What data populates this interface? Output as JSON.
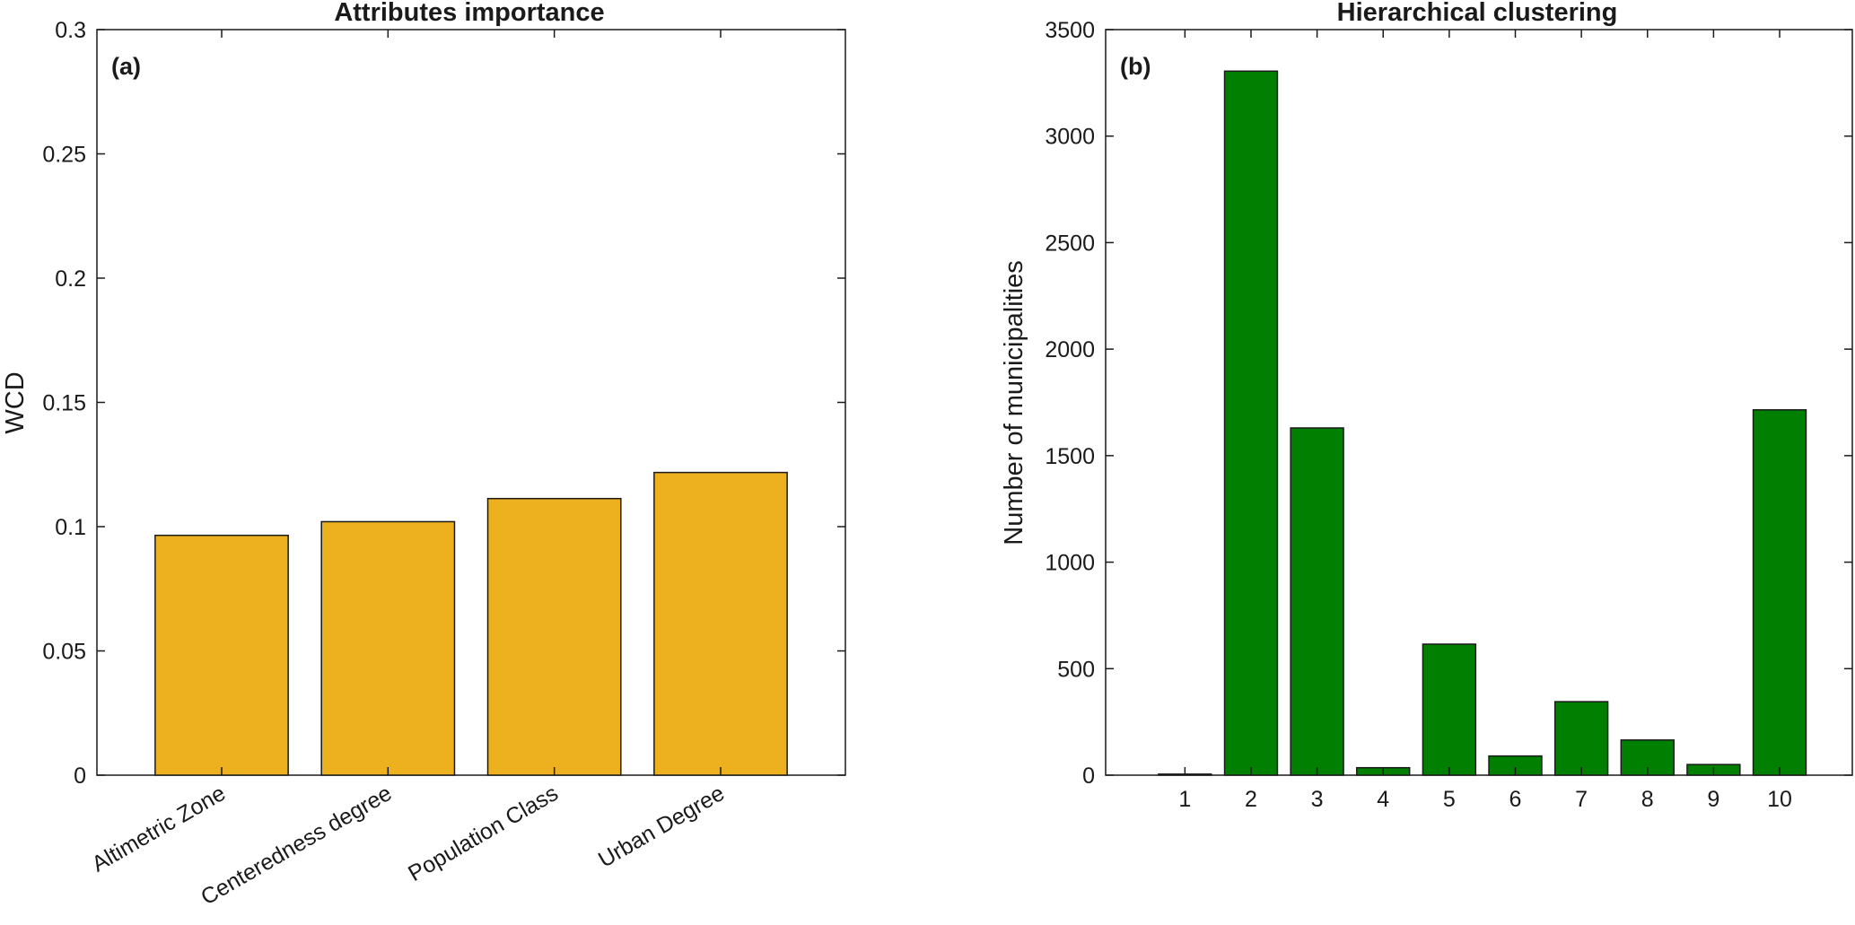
{
  "chart_data": [
    {
      "type": "bar",
      "title": "Attributes importance",
      "panel_label": "(a)",
      "xlabel": "",
      "ylabel": "WCD",
      "categories": [
        "Altimetric Zone",
        "Centeredness degree",
        "Population Class",
        "Urban Degree"
      ],
      "values": [
        0.0965,
        0.102,
        0.1113,
        0.1218
      ],
      "ylim": [
        0,
        0.3
      ],
      "yticks": [
        0,
        0.05,
        0.1,
        0.15,
        0.2,
        0.25,
        0.3
      ],
      "ytick_labels": [
        "0",
        "0.05",
        "0.1",
        "0.15",
        "0.2",
        "0.25",
        "0.3"
      ],
      "bar_color": "#EDB120",
      "grid": false
    },
    {
      "type": "bar",
      "title": "Hierarchical clustering",
      "panel_label": "(b)",
      "xlabel": "",
      "ylabel": "Number of municipalities",
      "categories": [
        "1",
        "2",
        "3",
        "4",
        "5",
        "6",
        "7",
        "8",
        "9",
        "10"
      ],
      "values": [
        5,
        3305,
        1630,
        35,
        615,
        90,
        345,
        165,
        50,
        1715
      ],
      "ylim": [
        0,
        3500
      ],
      "yticks": [
        0,
        500,
        1000,
        1500,
        2000,
        2500,
        3000,
        3500
      ],
      "ytick_labels": [
        "0",
        "500",
        "1000",
        "1500",
        "2000",
        "2500",
        "3000",
        "3500"
      ],
      "bar_color": "#007F00",
      "grid": false
    }
  ]
}
